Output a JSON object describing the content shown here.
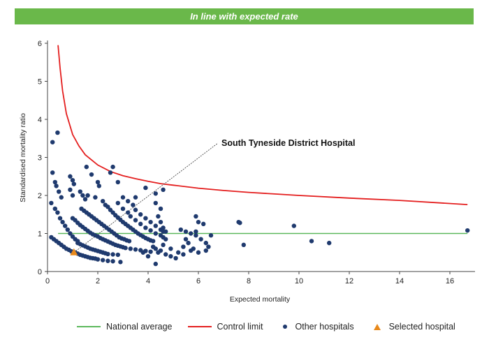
{
  "banner": {
    "text": "In line with expected rate"
  },
  "colors": {
    "banner": "#6ab84a",
    "national_average": "#5cb85c",
    "control_limit": "#e41e1e",
    "other_hospitals": "#1f3a6e",
    "selected_hospital": "#e8891b"
  },
  "legend": {
    "national_average": "National average",
    "control_limit": "Control limit",
    "other_hospitals": "Other hospitals",
    "selected_hospital": "Selected hospital"
  },
  "chart_data": {
    "type": "scatter",
    "xlabel": "Expected mortality",
    "ylabel": "Standardised mortality ratio",
    "xlim": [
      0,
      17
    ],
    "ylim": [
      0,
      6
    ],
    "xticks": [
      0,
      2,
      4,
      6,
      8,
      10,
      12,
      14,
      16
    ],
    "yticks": [
      0,
      1,
      2,
      3,
      4,
      5,
      6
    ],
    "grid": false,
    "legend_position": "bottom",
    "annotation": {
      "text": "South Tyneside District Hospital",
      "x": 1.05,
      "y": 0.5
    },
    "national_average": 1,
    "control_limit": {
      "x": [
        0.42,
        0.5,
        0.6,
        0.75,
        1.0,
        1.25,
        1.5,
        2.0,
        2.5,
        3.0,
        3.5,
        4.0,
        4.5,
        5.0,
        6.0,
        7.0,
        8.0,
        10.0,
        12.0,
        14.0,
        16.7
      ],
      "y": [
        5.95,
        5.35,
        4.75,
        4.15,
        3.6,
        3.3,
        3.07,
        2.8,
        2.63,
        2.52,
        2.44,
        2.37,
        2.31,
        2.27,
        2.19,
        2.13,
        2.08,
        2.0,
        1.93,
        1.87,
        1.76
      ]
    },
    "series": [
      {
        "name": "Other hospitals",
        "points": [
          [
            0.15,
            1.8
          ],
          [
            0.2,
            3.4
          ],
          [
            0.4,
            3.65
          ],
          [
            0.2,
            2.6
          ],
          [
            0.3,
            2.35
          ],
          [
            0.35,
            2.25
          ],
          [
            0.45,
            2.1
          ],
          [
            0.55,
            1.95
          ],
          [
            0.3,
            1.65
          ],
          [
            0.4,
            1.55
          ],
          [
            0.5,
            1.4
          ],
          [
            0.6,
            1.3
          ],
          [
            0.7,
            1.2
          ],
          [
            0.8,
            1.1
          ],
          [
            0.9,
            1.0
          ],
          [
            1.0,
            0.92
          ],
          [
            1.1,
            0.85
          ],
          [
            1.2,
            0.8
          ],
          [
            0.15,
            0.9
          ],
          [
            0.25,
            0.85
          ],
          [
            0.35,
            0.8
          ],
          [
            0.45,
            0.75
          ],
          [
            0.55,
            0.7
          ],
          [
            0.65,
            0.65
          ],
          [
            0.75,
            0.6
          ],
          [
            0.85,
            0.57
          ],
          [
            0.95,
            0.53
          ],
          [
            1.1,
            0.5
          ],
          [
            1.2,
            0.47
          ],
          [
            1.3,
            0.44
          ],
          [
            1.4,
            0.42
          ],
          [
            1.5,
            0.4
          ],
          [
            1.6,
            0.38
          ],
          [
            1.7,
            0.36
          ],
          [
            1.8,
            0.35
          ],
          [
            1.9,
            0.34
          ],
          [
            2.0,
            0.32
          ],
          [
            2.2,
            0.3
          ],
          [
            2.4,
            0.28
          ],
          [
            2.6,
            0.27
          ],
          [
            2.9,
            0.25
          ],
          [
            0.9,
            2.5
          ],
          [
            1.0,
            2.4
          ],
          [
            1.05,
            2.3
          ],
          [
            0.9,
            2.15
          ],
          [
            1.0,
            2.0
          ],
          [
            1.3,
            2.1
          ],
          [
            1.4,
            2.0
          ],
          [
            1.5,
            1.9
          ],
          [
            1.35,
            1.65
          ],
          [
            1.45,
            1.6
          ],
          [
            1.55,
            1.55
          ],
          [
            1.65,
            1.5
          ],
          [
            1.75,
            1.45
          ],
          [
            1.85,
            1.4
          ],
          [
            1.95,
            1.35
          ],
          [
            2.05,
            1.3
          ],
          [
            2.15,
            1.25
          ],
          [
            2.25,
            1.2
          ],
          [
            2.35,
            1.15
          ],
          [
            2.45,
            1.1
          ],
          [
            2.55,
            1.05
          ],
          [
            2.65,
            1.0
          ],
          [
            2.75,
            0.95
          ],
          [
            2.85,
            0.9
          ],
          [
            2.95,
            0.87
          ],
          [
            3.05,
            0.85
          ],
          [
            3.15,
            0.82
          ],
          [
            3.25,
            0.8
          ],
          [
            1.0,
            1.4
          ],
          [
            1.1,
            1.35
          ],
          [
            1.2,
            1.28
          ],
          [
            1.3,
            1.22
          ],
          [
            1.4,
            1.17
          ],
          [
            1.5,
            1.12
          ],
          [
            1.6,
            1.07
          ],
          [
            1.7,
            1.02
          ],
          [
            1.8,
            0.98
          ],
          [
            1.9,
            0.95
          ],
          [
            2.0,
            0.92
          ],
          [
            2.1,
            0.88
          ],
          [
            2.2,
            0.85
          ],
          [
            2.3,
            0.82
          ],
          [
            2.4,
            0.79
          ],
          [
            2.5,
            0.76
          ],
          [
            2.6,
            0.73
          ],
          [
            2.7,
            0.7
          ],
          [
            2.8,
            0.68
          ],
          [
            2.9,
            0.66
          ],
          [
            3.0,
            0.64
          ],
          [
            3.1,
            0.62
          ],
          [
            3.3,
            0.6
          ],
          [
            3.5,
            0.58
          ],
          [
            3.7,
            0.56
          ],
          [
            3.9,
            0.54
          ],
          [
            4.1,
            0.52
          ],
          [
            4.4,
            0.5
          ],
          [
            1.2,
            0.75
          ],
          [
            1.3,
            0.72
          ],
          [
            1.4,
            0.69
          ],
          [
            1.5,
            0.66
          ],
          [
            1.6,
            0.63
          ],
          [
            1.7,
            0.6
          ],
          [
            1.8,
            0.58
          ],
          [
            1.9,
            0.56
          ],
          [
            2.0,
            0.54
          ],
          [
            2.1,
            0.52
          ],
          [
            2.2,
            0.5
          ],
          [
            2.3,
            0.48
          ],
          [
            2.4,
            0.46
          ],
          [
            2.6,
            0.45
          ],
          [
            2.8,
            0.44
          ],
          [
            1.55,
            2.75
          ],
          [
            1.75,
            2.55
          ],
          [
            2.0,
            2.35
          ],
          [
            2.05,
            2.25
          ],
          [
            2.5,
            2.6
          ],
          [
            2.6,
            2.75
          ],
          [
            2.8,
            2.35
          ],
          [
            1.6,
            2.0
          ],
          [
            1.9,
            1.95
          ],
          [
            2.2,
            1.85
          ],
          [
            2.3,
            1.75
          ],
          [
            2.4,
            1.7
          ],
          [
            2.5,
            1.62
          ],
          [
            2.6,
            1.55
          ],
          [
            2.7,
            1.48
          ],
          [
            2.8,
            1.42
          ],
          [
            2.9,
            1.36
          ],
          [
            3.0,
            1.3
          ],
          [
            3.1,
            1.25
          ],
          [
            3.2,
            1.2
          ],
          [
            3.3,
            1.15
          ],
          [
            3.4,
            1.1
          ],
          [
            3.5,
            1.05
          ],
          [
            3.6,
            1.0
          ],
          [
            3.7,
            0.96
          ],
          [
            3.8,
            0.92
          ],
          [
            3.9,
            0.88
          ],
          [
            4.0,
            0.85
          ],
          [
            4.1,
            0.82
          ],
          [
            4.2,
            0.8
          ],
          [
            2.8,
            1.8
          ],
          [
            3.0,
            1.95
          ],
          [
            3.2,
            1.85
          ],
          [
            3.4,
            1.75
          ],
          [
            3.5,
            1.62
          ],
          [
            3.7,
            1.5
          ],
          [
            3.9,
            1.4
          ],
          [
            4.1,
            1.3
          ],
          [
            4.3,
            1.2
          ],
          [
            4.5,
            1.1
          ],
          [
            4.6,
            1.05
          ],
          [
            3.0,
            1.65
          ],
          [
            3.2,
            1.55
          ],
          [
            3.3,
            1.45
          ],
          [
            3.5,
            1.35
          ],
          [
            3.7,
            1.25
          ],
          [
            3.9,
            1.15
          ],
          [
            4.1,
            1.08
          ],
          [
            4.3,
            1.0
          ],
          [
            4.5,
            0.95
          ],
          [
            4.6,
            0.9
          ],
          [
            4.7,
            0.85
          ],
          [
            3.5,
            1.95
          ],
          [
            3.9,
            2.2
          ],
          [
            4.3,
            2.05
          ],
          [
            4.6,
            2.15
          ],
          [
            4.3,
            1.8
          ],
          [
            4.5,
            1.65
          ],
          [
            4.4,
            1.45
          ],
          [
            4.5,
            1.3
          ],
          [
            4.6,
            1.15
          ],
          [
            4.7,
            1.05
          ],
          [
            4.3,
            0.6
          ],
          [
            4.5,
            0.55
          ],
          [
            4.7,
            0.45
          ],
          [
            4.9,
            0.4
          ],
          [
            5.1,
            0.35
          ],
          [
            4.0,
            0.4
          ],
          [
            4.3,
            0.2
          ],
          [
            3.8,
            0.5
          ],
          [
            4.2,
            0.65
          ],
          [
            4.6,
            0.7
          ],
          [
            4.9,
            0.6
          ],
          [
            5.2,
            0.5
          ],
          [
            5.4,
            0.45
          ],
          [
            5.3,
            1.1
          ],
          [
            5.5,
            1.05
          ],
          [
            5.7,
            1.0
          ],
          [
            5.9,
            0.95
          ],
          [
            5.5,
            0.85
          ],
          [
            5.6,
            0.75
          ],
          [
            5.4,
            0.65
          ],
          [
            5.8,
            0.6
          ],
          [
            5.9,
            1.45
          ],
          [
            6.0,
            1.3
          ],
          [
            6.2,
            1.25
          ],
          [
            5.9,
            1.05
          ],
          [
            6.1,
            0.85
          ],
          [
            6.3,
            0.75
          ],
          [
            6.4,
            0.65
          ],
          [
            6.3,
            0.55
          ],
          [
            6.5,
            0.95
          ],
          [
            6.0,
            0.5
          ],
          [
            5.7,
            0.55
          ],
          [
            7.6,
            1.3
          ],
          [
            7.65,
            1.28
          ],
          [
            7.8,
            0.7
          ],
          [
            9.8,
            1.2
          ],
          [
            10.5,
            0.8
          ],
          [
            11.2,
            0.75
          ],
          [
            16.7,
            1.08
          ]
        ]
      },
      {
        "name": "Selected hospital",
        "points": [
          [
            1.05,
            0.5
          ]
        ]
      }
    ]
  }
}
